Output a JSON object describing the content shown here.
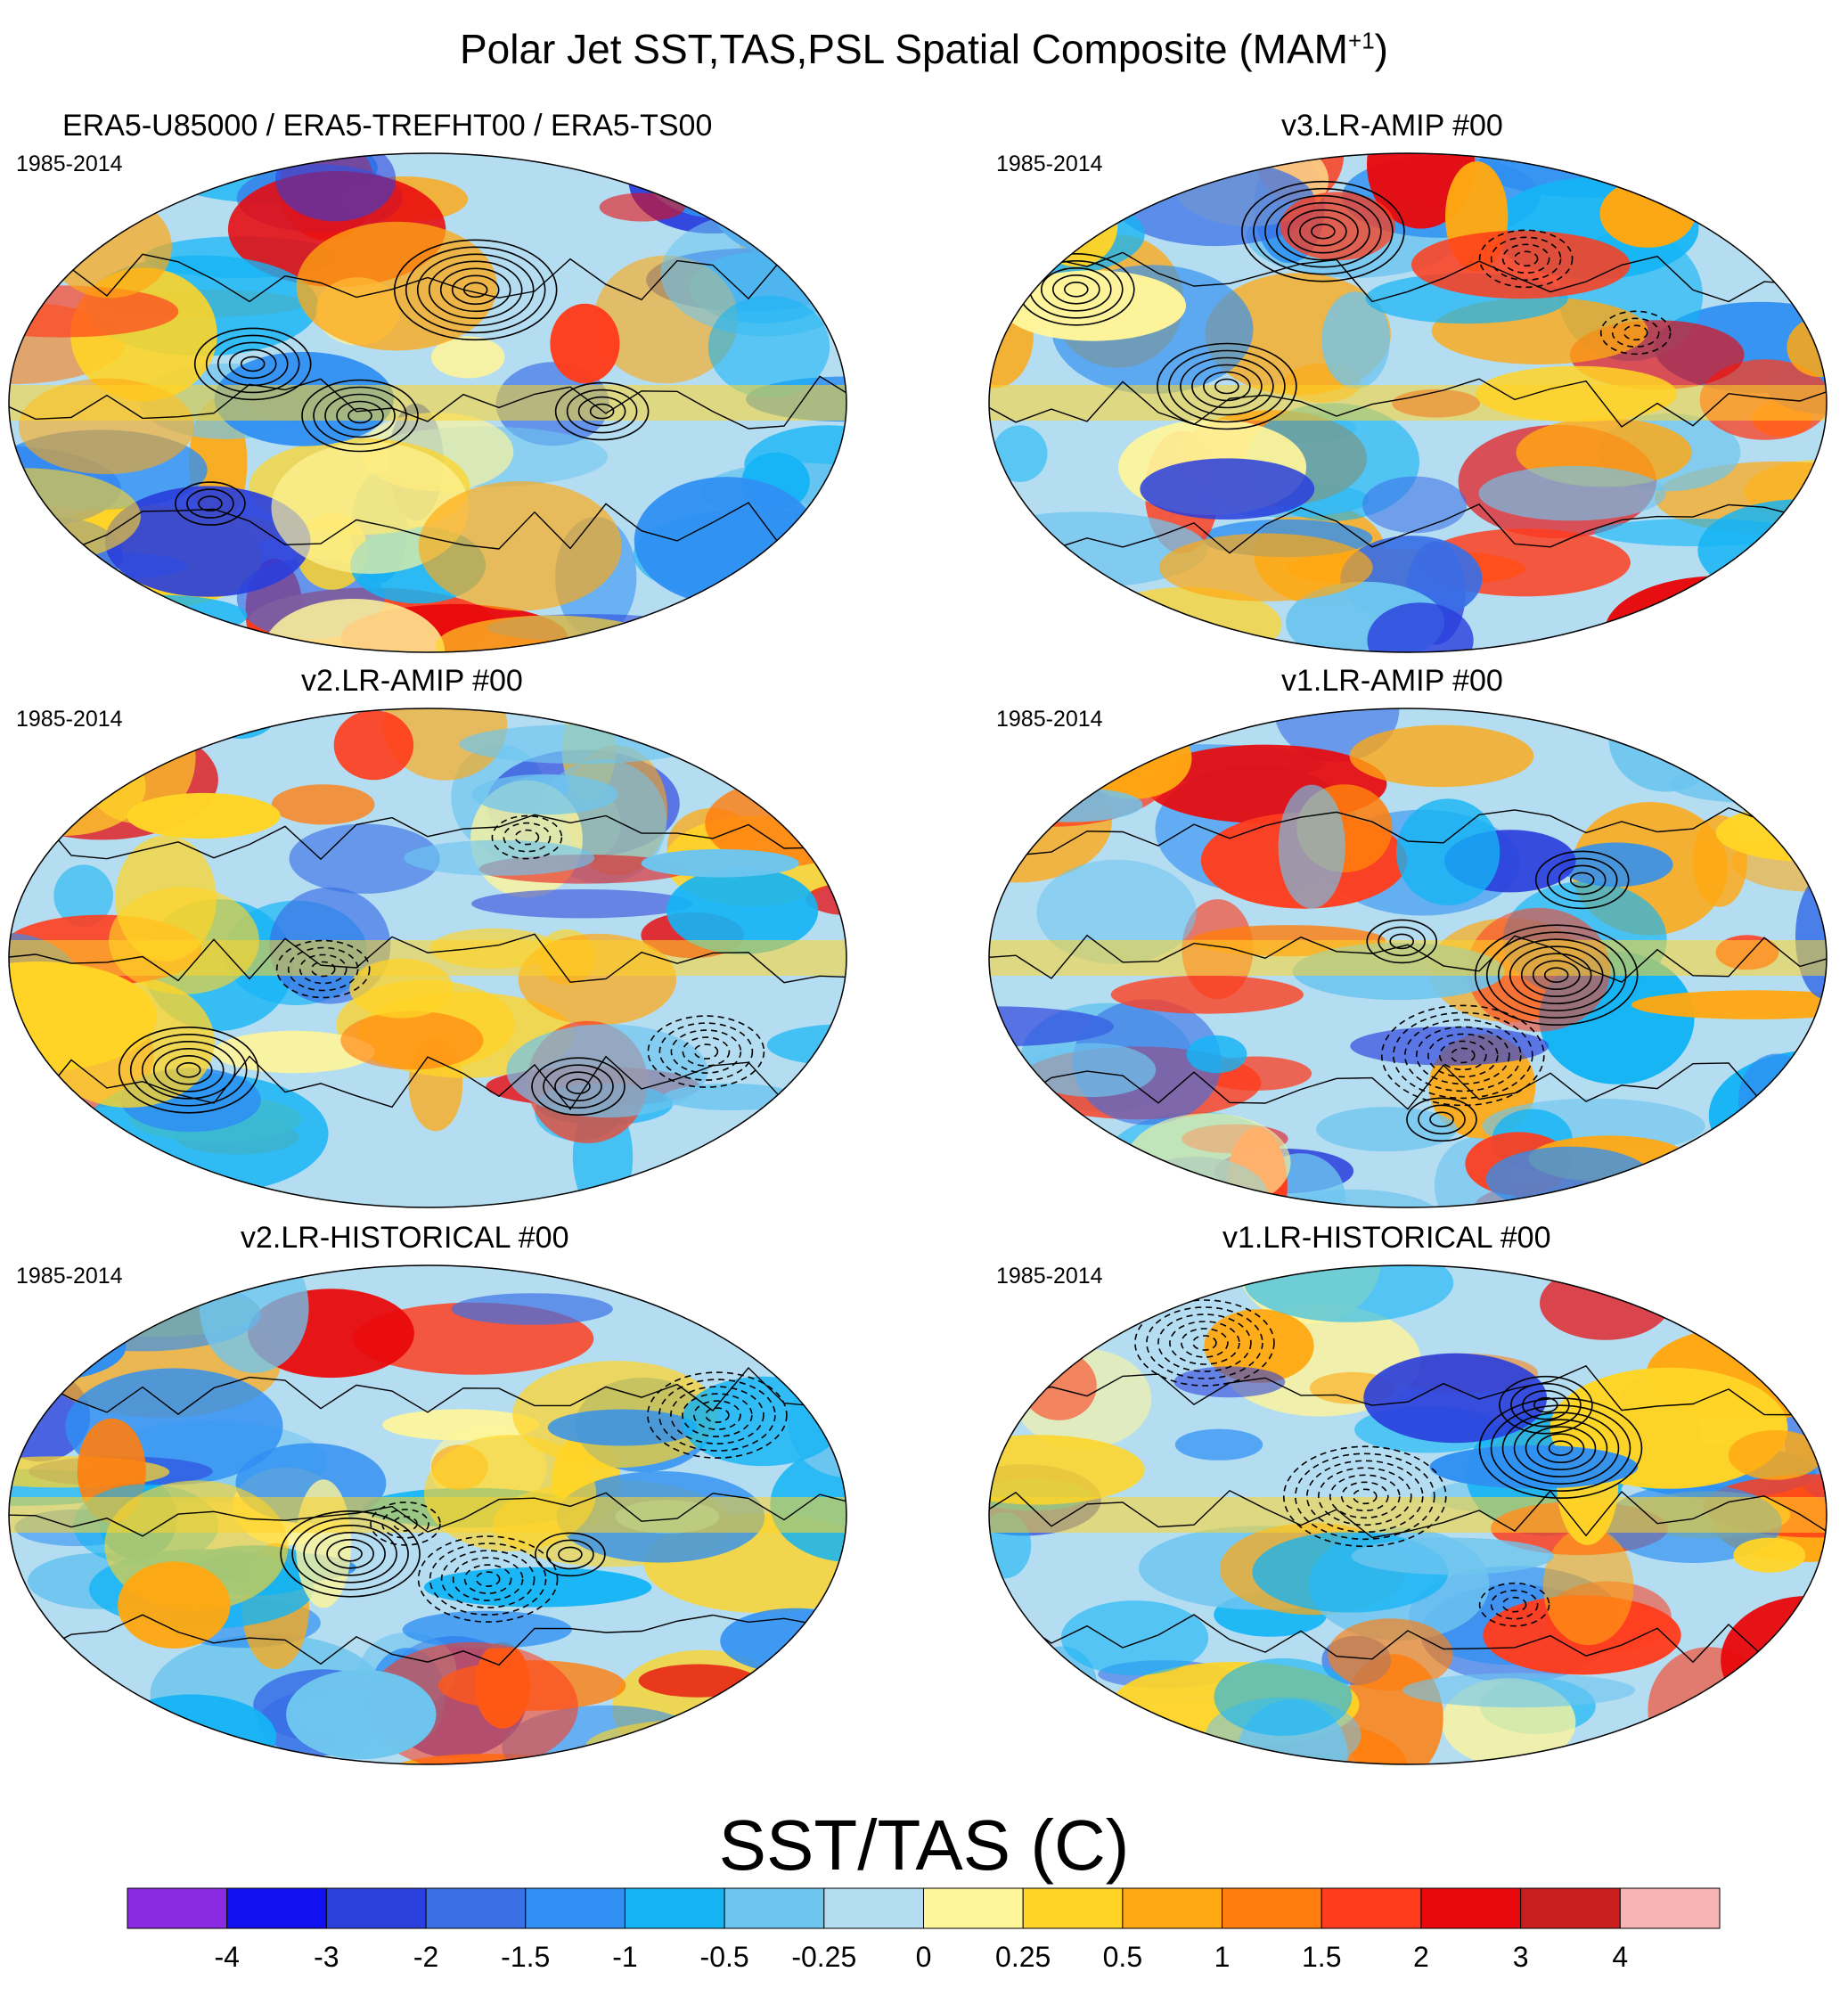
{
  "figure_title": "Polar Jet SST,TAS,PSL Spatial Composite (MAM",
  "figure_title_sup": "+1",
  "figure_title_close": ")",
  "chart_data": {
    "type": "heatmap",
    "projection": "Robinson (global, centered on Pacific)",
    "field": "SST/TAS",
    "units": "C",
    "contour_overlay": "PSL composite (solid = positive, dashed = negative)",
    "panels": [
      {
        "title": "ERA5-U85000 / ERA5-TREFHT00 / ERA5-TS00",
        "period": "1985-2014",
        "palette_seed": 11
      },
      {
        "title": "v3.LR-AMIP  #00",
        "period": "1985-2014",
        "palette_seed": 23
      },
      {
        "title": "v2.LR-AMIP  #00",
        "period": "1985-2014",
        "palette_seed": 37
      },
      {
        "title": "v1.LR-AMIP  #00",
        "period": "1985-2014",
        "palette_seed": 41
      },
      {
        "title": "v2.LR-HISTORICAL  #00",
        "period": "1985-2014",
        "palette_seed": 53
      },
      {
        "title": "v1.LR-HISTORICAL  #00",
        "period": "1985-2014",
        "palette_seed": 67
      }
    ],
    "colorbar": {
      "title": "SST/TAS (C)",
      "tick_labels": [
        "-4",
        "-3",
        "-2",
        "-1.5",
        "-1",
        "-0.5",
        "-0.25",
        "0",
        "0.25",
        "0.5",
        "1",
        "1.5",
        "2",
        "3",
        "4"
      ],
      "colors": [
        "#8a2be2",
        "#1010f0",
        "#2a3fdc",
        "#3a6fe6",
        "#2f8ff2",
        "#14b4f5",
        "#6ec5ef",
        "#b5ddf2",
        "#fff59a",
        "#ffd426",
        "#ffa812",
        "#ff7e0e",
        "#ff3c1c",
        "#e8090c",
        "#c81e1e",
        "#f8b4b4"
      ]
    }
  }
}
